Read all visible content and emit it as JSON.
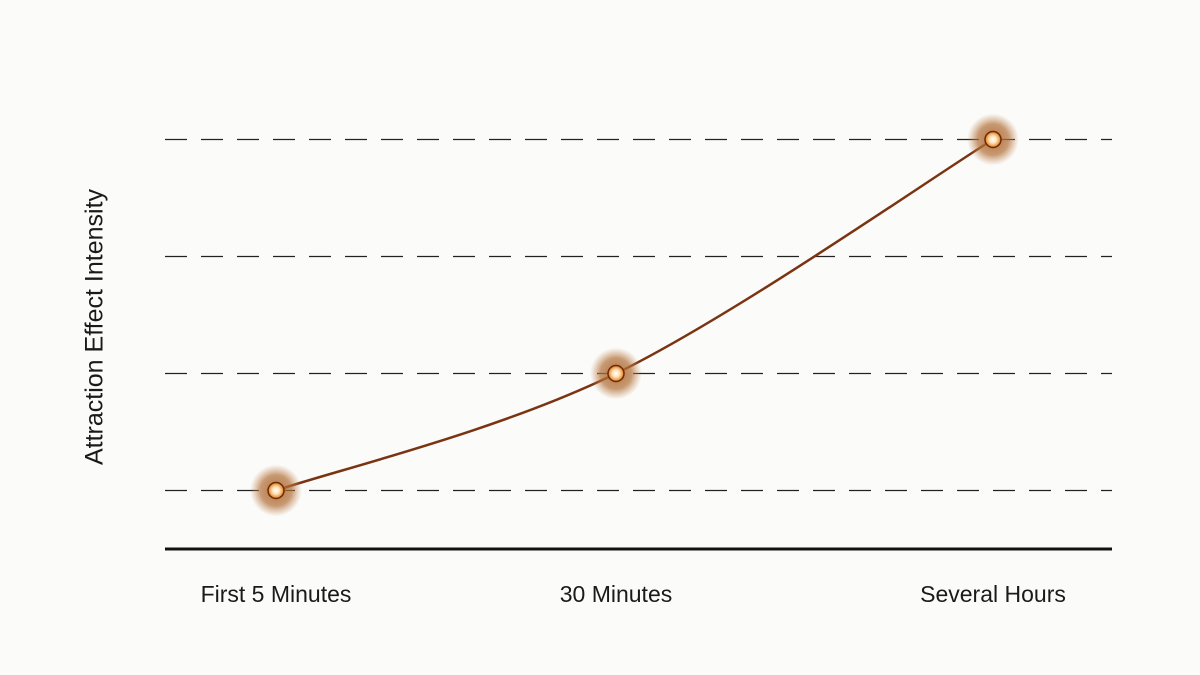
{
  "chart_data": {
    "type": "line",
    "y_label": "Attraction Effect Intensity",
    "categories": [
      "First 5 Minutes",
      "30 Minutes",
      "Several Hours"
    ],
    "values": [
      0.5,
      1.5,
      3.5
    ],
    "color": "#7a3412",
    "ylim": [
      0,
      4
    ],
    "yticks": [
      0.5,
      1.5,
      2.5,
      3.5
    ],
    "grid": true
  }
}
